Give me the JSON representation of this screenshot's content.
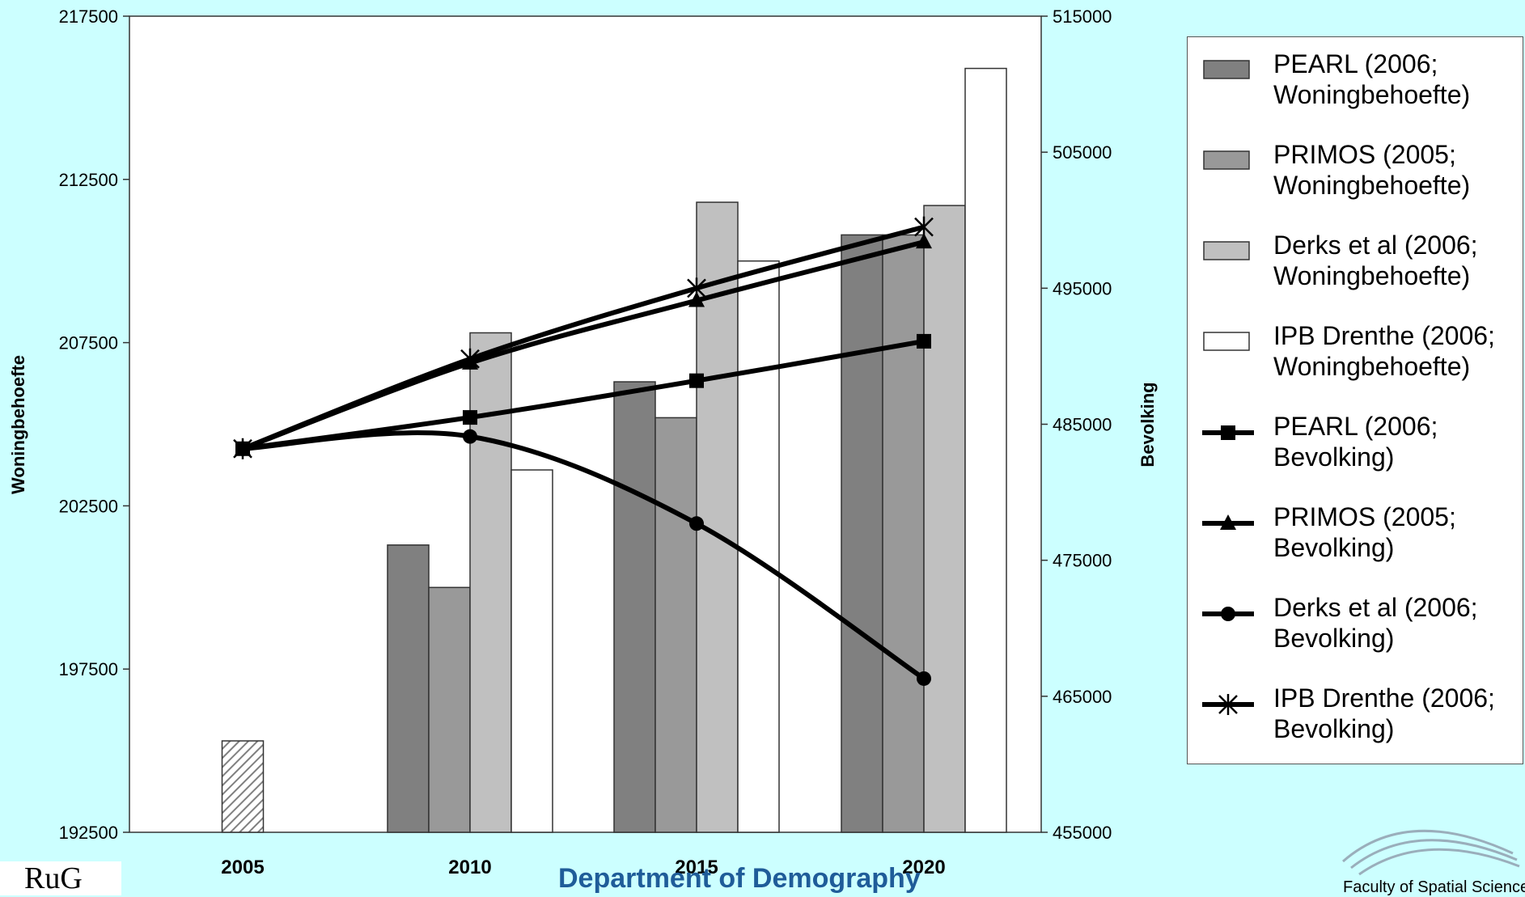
{
  "chart_data": {
    "type": "bar",
    "categories": [
      "2005",
      "2010",
      "2015",
      "2020"
    ],
    "bar_series": [
      {
        "name": "PEARL (2006; Woningbehoefte)",
        "color": "#808080",
        "values": [
          null,
          201300,
          206300,
          210800
        ]
      },
      {
        "name": "PRIMOS (2005; Woningbehoefte)",
        "color": "#999999",
        "values": [
          null,
          200000,
          205200,
          210800
        ]
      },
      {
        "name": "Derks et al (2006; Woningbehoefte)",
        "color": "#c0c0c0",
        "values": [
          null,
          207800,
          211800,
          211700
        ]
      },
      {
        "name": "IPB Drenthe (2006; Woningbehoefte)",
        "color": "#ffffff",
        "values": [
          null,
          203600,
          210000,
          215900
        ]
      }
    ],
    "base_bar": {
      "category": "2005",
      "value": 195300,
      "pattern": "hatched"
    },
    "line_series": [
      {
        "name": "PEARL (2006; Bevolking)",
        "marker": "square",
        "values": [
          483200,
          485500,
          488200,
          491100
        ]
      },
      {
        "name": "PRIMOS (2005; Bevolking)",
        "marker": "triangle",
        "values": [
          483200,
          489500,
          494100,
          498400
        ]
      },
      {
        "name": "Derks et al (2006; Bevolking)",
        "marker": "circle",
        "values": [
          483200,
          484100,
          477700,
          466300
        ]
      },
      {
        "name": "IPB Drenthe (2006; Bevolking)",
        "marker": "star",
        "values": [
          483200,
          489800,
          495000,
          499500
        ]
      }
    ],
    "y_left": {
      "label": "Woningbehoefte",
      "min": 192500,
      "max": 217500,
      "ticks": [
        "192500",
        "197500",
        "202500",
        "207500",
        "212500",
        "217500"
      ]
    },
    "y_right": {
      "label": "Bevolking",
      "min": 455000,
      "max": 515000,
      "ticks": [
        "455000",
        "465000",
        "475000",
        "485000",
        "495000",
        "505000",
        "515000"
      ]
    },
    "xlabel": "",
    "legend_position": "right"
  },
  "legend": [
    {
      "label": "PEARL (2006;\nWoningbehoefte)",
      "kind": "bar",
      "color": "#808080"
    },
    {
      "label": "PRIMOS (2005;\nWoningbehoefte)",
      "kind": "bar",
      "color": "#999999"
    },
    {
      "label": "Derks et al (2006;\nWoningbehoefte)",
      "kind": "bar",
      "color": "#c0c0c0"
    },
    {
      "label": "IPB Drenthe (2006;\nWoningbehoefte)",
      "kind": "bar",
      "color": "#ffffff"
    },
    {
      "label": "PEARL (2006;\nBevolking)",
      "kind": "line",
      "marker": "square"
    },
    {
      "label": "PRIMOS (2005;\nBevolking)",
      "kind": "line",
      "marker": "triangle"
    },
    {
      "label": "Derks et al (2006;\nBevolking)",
      "kind": "line",
      "marker": "circle"
    },
    {
      "label": "IPB Drenthe (2006;\nBevolking)",
      "kind": "line",
      "marker": "star"
    }
  ],
  "footer": {
    "title": "Department of Demography",
    "left_logo": "RuG",
    "right_logo": "Faculty of Spatial Sciences"
  },
  "colors": {
    "background": "#ccffff",
    "footer_title": "#1f5c99"
  }
}
